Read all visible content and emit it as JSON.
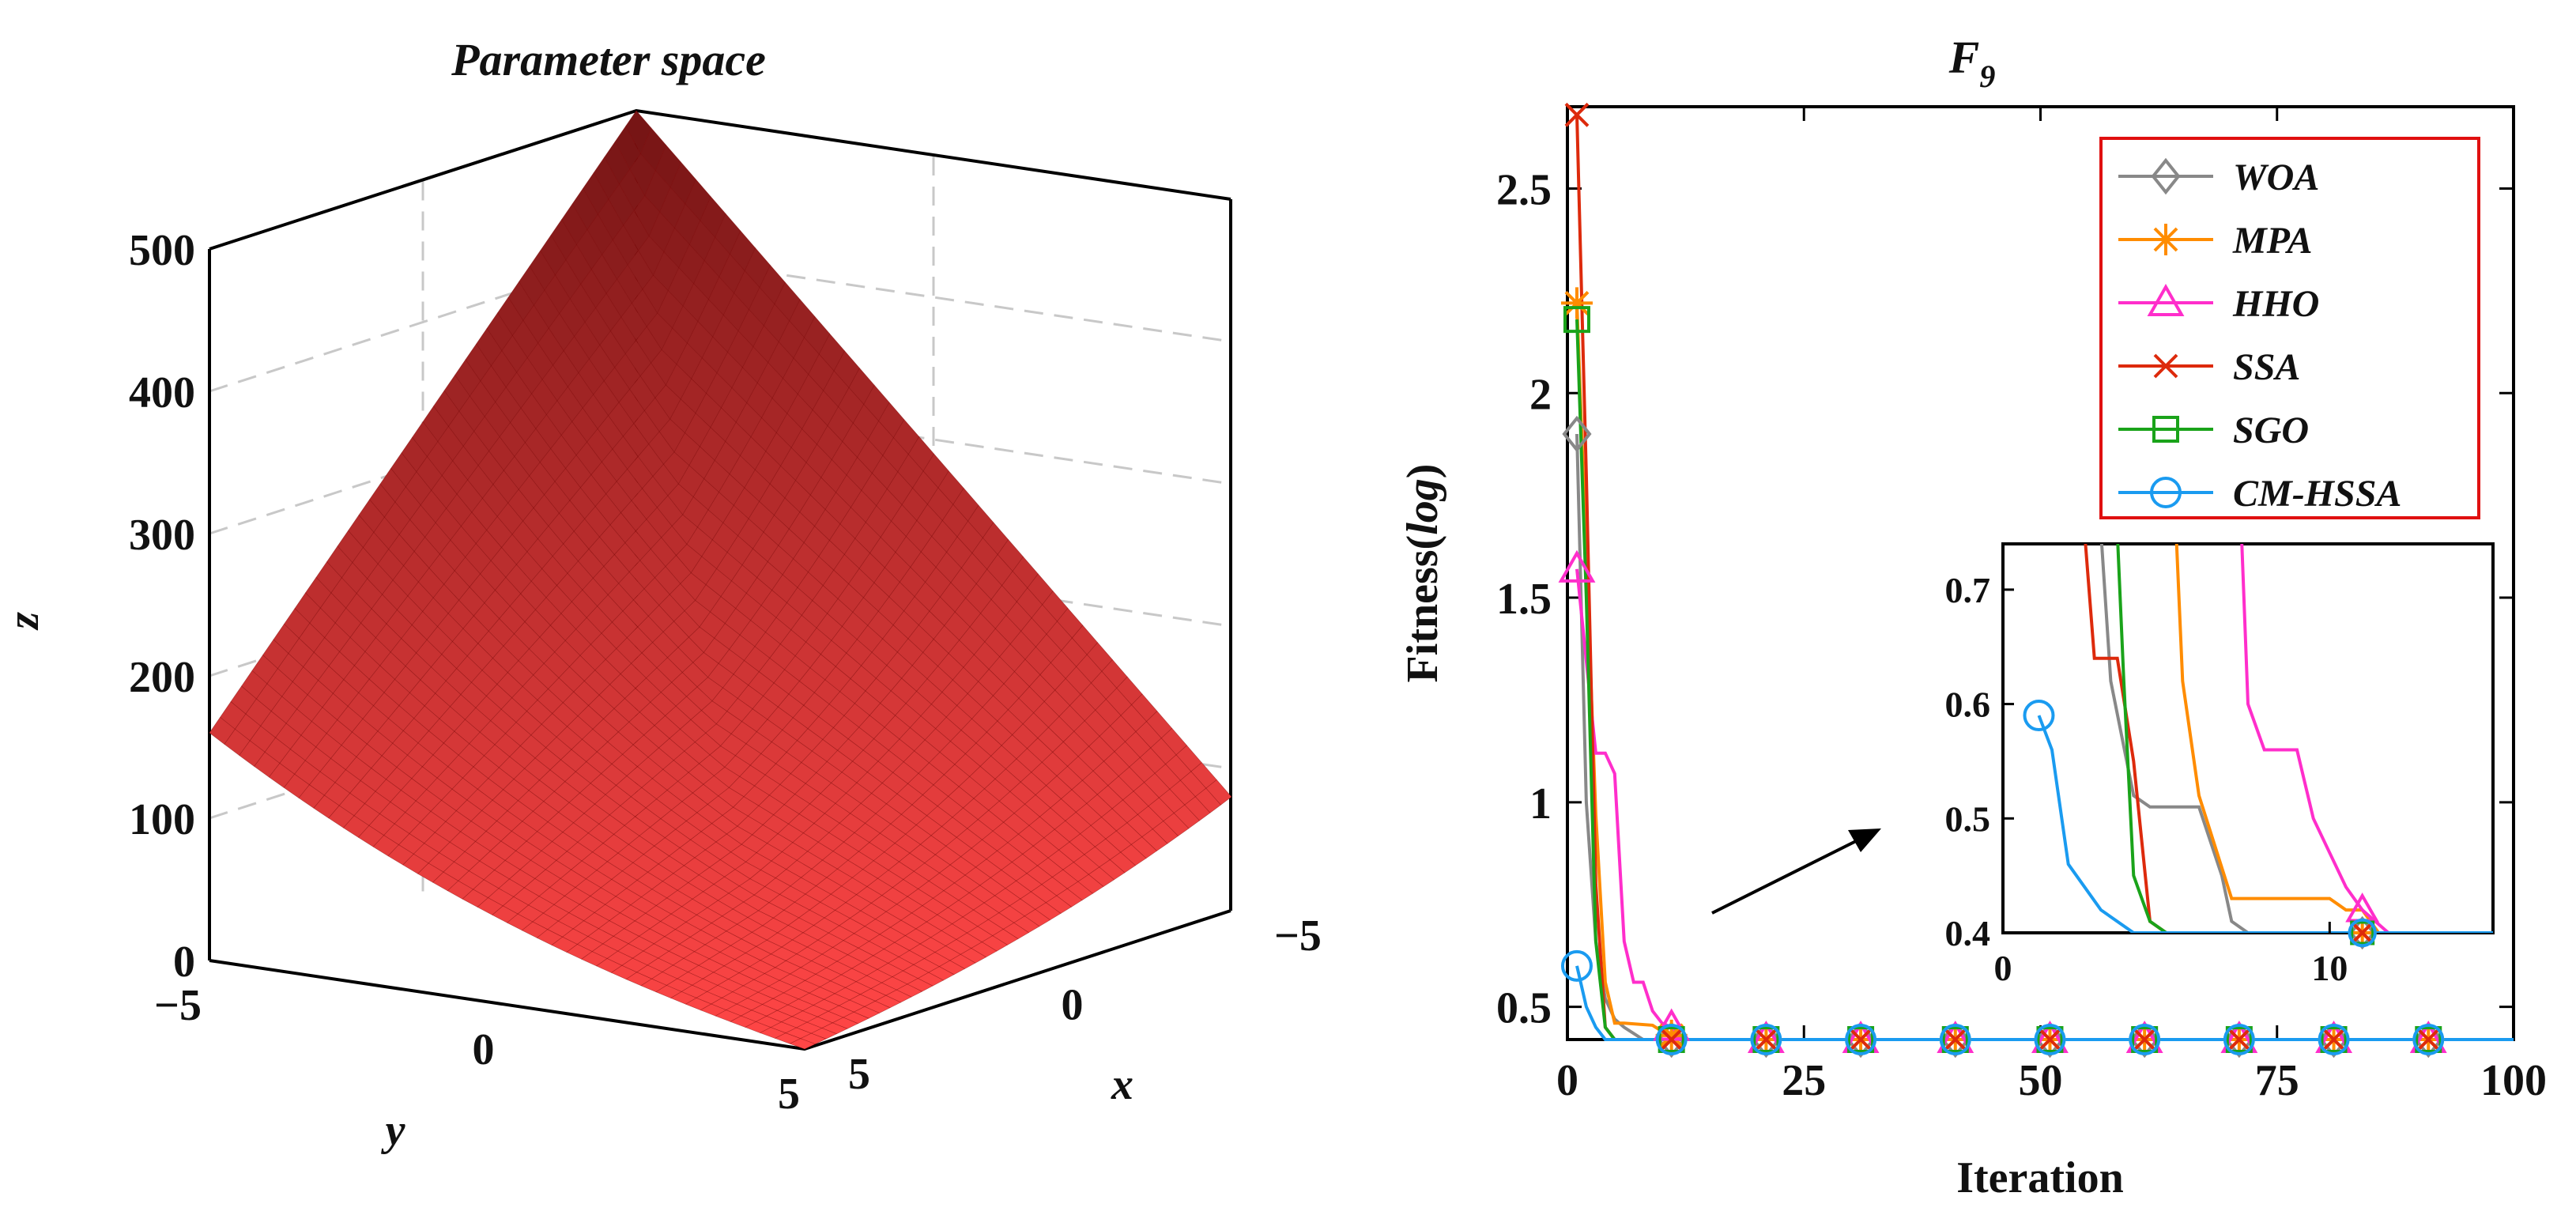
{
  "chart_data": [
    {
      "type": "surface",
      "title": "Parameter space",
      "xlabel": "x",
      "ylabel": "y",
      "zlabel": "z",
      "x_ticks": [
        "−5",
        "0",
        "5"
      ],
      "y_ticks": [
        "−5",
        "0",
        "5"
      ],
      "z_ticks": [
        "0",
        "100",
        "200",
        "300",
        "400",
        "500"
      ],
      "xlim": [
        -5,
        5
      ],
      "ylim": [
        -5,
        5
      ],
      "zlim": [
        0,
        500
      ],
      "surface_color": "#ff3b3b",
      "edge_color": "#7a0000",
      "corner_values": {
        "x-5_y-5": 500,
        "x5_y-5": 160,
        "x-5_y5": 80,
        "x5_y5": 0
      }
    },
    {
      "type": "line",
      "title": "F",
      "title_subscript": "9",
      "xlabel": "Iteration",
      "ylabel_prefix": "Fitness(",
      "ylabel_italic": "log",
      "ylabel_suffix": ")",
      "xlim": [
        0,
        100
      ],
      "ylim": [
        0.42,
        2.7
      ],
      "x_ticks": [
        "0",
        "25",
        "50",
        "75",
        "100"
      ],
      "y_ticks": [
        {
          "value": 0.5,
          "label": "0.5"
        },
        {
          "value": 1.0,
          "label": "1"
        },
        {
          "value": 1.5,
          "label": "1.5"
        },
        {
          "value": 2.0,
          "label": "2"
        },
        {
          "value": 2.5,
          "label": "2.5"
        }
      ],
      "series": [
        {
          "name": "WOA",
          "color": "#888888",
          "marker": "diamond",
          "points": [
            [
              1,
              1.9
            ],
            [
              2,
              1.0
            ],
            [
              3,
              0.66
            ],
            [
              4,
              0.52
            ],
            [
              5,
              0.47
            ],
            [
              6,
              0.45
            ],
            [
              8,
              0.42
            ],
            [
              100,
              0.42
            ]
          ]
        },
        {
          "name": "MPA",
          "color": "#ff8c00",
          "marker": "star",
          "points": [
            [
              1,
              2.22
            ],
            [
              2,
              1.6
            ],
            [
              3,
              0.97
            ],
            [
              4,
              0.56
            ],
            [
              5,
              0.46
            ],
            [
              6,
              0.46
            ],
            [
              9,
              0.455
            ],
            [
              10,
              0.44
            ],
            [
              12,
              0.42
            ],
            [
              100,
              0.42
            ]
          ]
        },
        {
          "name": "HHO",
          "color": "#ff2ecb",
          "marker": "triangle",
          "points": [
            [
              1,
              1.57
            ],
            [
              3,
              1.12
            ],
            [
              4,
              1.12
            ],
            [
              5,
              1.07
            ],
            [
              6,
              0.66
            ],
            [
              7,
              0.56
            ],
            [
              8,
              0.56
            ],
            [
              9,
              0.49
            ],
            [
              10,
              0.46
            ],
            [
              11,
              0.45
            ],
            [
              12,
              0.42
            ],
            [
              100,
              0.42
            ]
          ]
        },
        {
          "name": "SSA",
          "color": "#dd2a0c",
          "marker": "x",
          "points": [
            [
              1,
              2.68
            ],
            [
              2,
              1.8
            ],
            [
              3,
              0.8
            ],
            [
              4,
              0.45
            ],
            [
              5,
              0.42
            ],
            [
              100,
              0.42
            ]
          ]
        },
        {
          "name": "SGO",
          "color": "#1aa31a",
          "marker": "square",
          "points": [
            [
              1,
              2.18
            ],
            [
              2,
              1.5
            ],
            [
              3,
              0.66
            ],
            [
              4,
              0.45
            ],
            [
              5,
              0.42
            ],
            [
              100,
              0.42
            ]
          ]
        },
        {
          "name": "CM-HSSA",
          "color": "#1a9bf0",
          "marker": "circle",
          "points": [
            [
              1,
              0.6
            ],
            [
              2,
              0.5
            ],
            [
              3,
              0.45
            ],
            [
              4,
              0.42
            ],
            [
              100,
              0.42
            ]
          ]
        }
      ],
      "marker_x": [
        1,
        11,
        21,
        31,
        41,
        51,
        61,
        71,
        81,
        91
      ],
      "legend_location": "top-right",
      "inset": {
        "xlim": [
          0,
          15
        ],
        "ylim": [
          0.4,
          0.74
        ],
        "x_ticks": [
          {
            "value": 0,
            "label": "0"
          },
          {
            "value": 10,
            "label": "10"
          }
        ],
        "y_ticks": [
          {
            "value": 0.4,
            "label": "0.4"
          },
          {
            "value": 0.5,
            "label": "0.5"
          },
          {
            "value": 0.6,
            "label": "0.6"
          },
          {
            "value": 0.7,
            "label": "0.7"
          }
        ],
        "markers_x": [
          1,
          11
        ],
        "series": [
          {
            "name": "WOA",
            "points": [
              [
                3,
                0.75
              ],
              [
                3.3,
                0.62
              ],
              [
                4,
                0.52
              ],
              [
                4.5,
                0.51
              ],
              [
                5,
                0.51
              ],
              [
                6,
                0.51
              ],
              [
                6.7,
                0.45
              ],
              [
                7,
                0.41
              ],
              [
                7.5,
                0.4
              ],
              [
                15,
                0.4
              ]
            ]
          },
          {
            "name": "MPA",
            "points": [
              [
                5.3,
                0.75
              ],
              [
                5.5,
                0.62
              ],
              [
                6,
                0.52
              ],
              [
                7,
                0.43
              ],
              [
                8,
                0.43
              ],
              [
                10,
                0.43
              ],
              [
                10.5,
                0.42
              ],
              [
                11,
                0.42
              ],
              [
                11.5,
                0.4
              ],
              [
                15,
                0.4
              ]
            ]
          },
          {
            "name": "HHO",
            "points": [
              [
                7.3,
                0.75
              ],
              [
                7.5,
                0.6
              ],
              [
                8,
                0.56
              ],
              [
                9,
                0.56
              ],
              [
                9.5,
                0.5
              ],
              [
                10,
                0.47
              ],
              [
                10.5,
                0.44
              ],
              [
                11,
                0.42
              ],
              [
                11.8,
                0.4
              ],
              [
                15,
                0.4
              ]
            ]
          },
          {
            "name": "SSA",
            "points": [
              [
                2.5,
                0.75
              ],
              [
                2.8,
                0.64
              ],
              [
                3,
                0.64
              ],
              [
                3.5,
                0.64
              ],
              [
                4,
                0.55
              ],
              [
                4.5,
                0.41
              ],
              [
                5,
                0.4
              ],
              [
                15,
                0.4
              ]
            ]
          },
          {
            "name": "SGO",
            "points": [
              [
                3.5,
                0.75
              ],
              [
                3.7,
                0.62
              ],
              [
                4,
                0.45
              ],
              [
                4.5,
                0.41
              ],
              [
                5,
                0.4
              ],
              [
                15,
                0.4
              ]
            ]
          },
          {
            "name": "CM-HSSA",
            "points": [
              [
                1.1,
                0.59
              ],
              [
                1.5,
                0.56
              ],
              [
                2,
                0.46
              ],
              [
                3,
                0.42
              ],
              [
                4,
                0.4
              ],
              [
                15,
                0.4
              ]
            ]
          }
        ]
      }
    }
  ]
}
